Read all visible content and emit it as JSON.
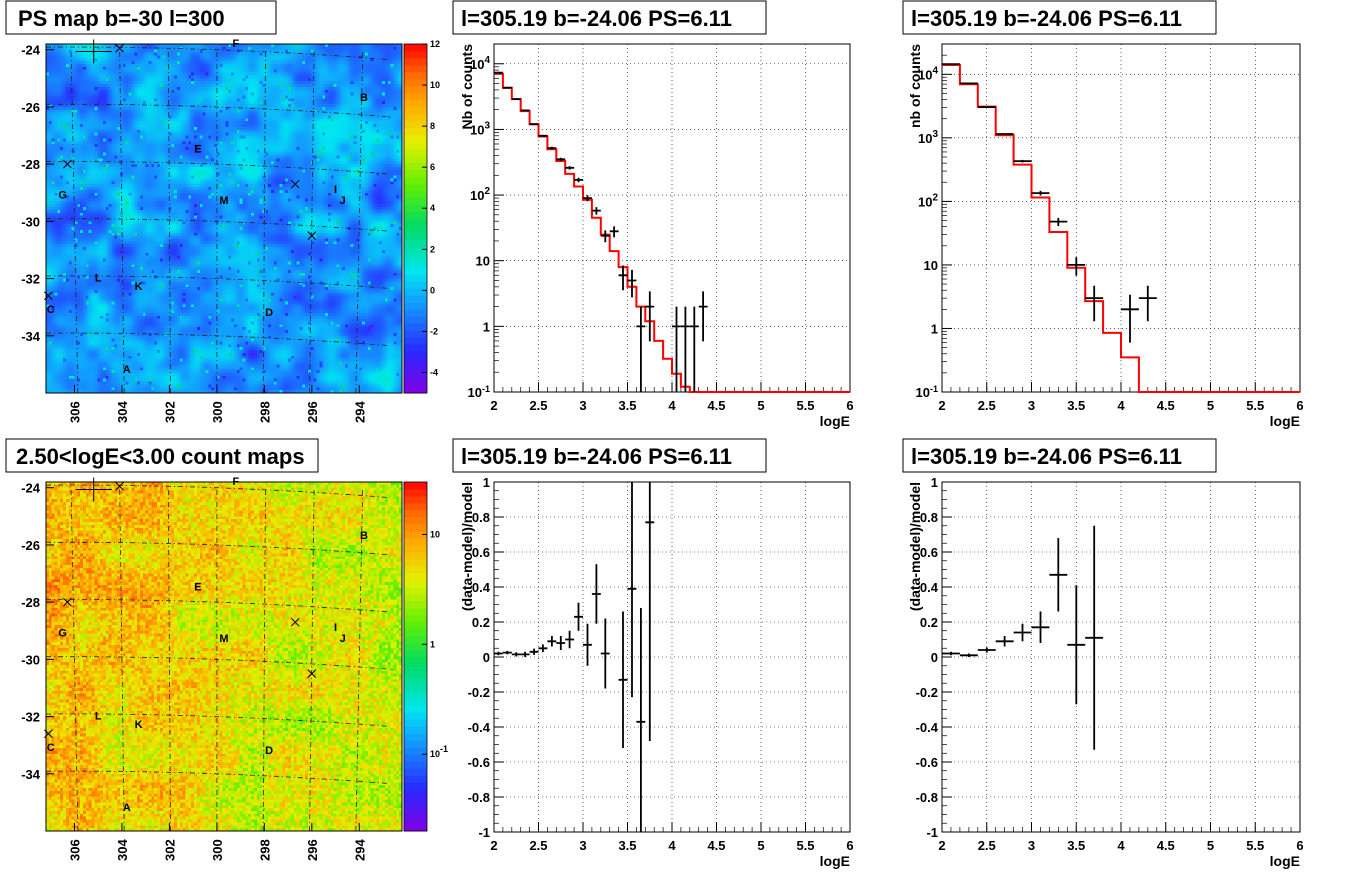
{
  "map_panels": [
    {
      "title": "PS map b=-30 l=300",
      "palette": "residual",
      "zmin": -5,
      "zmax": 12,
      "palette_ticks": [
        "12",
        "10",
        "8",
        "6",
        "4",
        "2",
        "0",
        "-2",
        "-4"
      ],
      "palette_tick_values": [
        12,
        10,
        8,
        6,
        4,
        2,
        0,
        -2,
        -4
      ]
    },
    {
      "title": "2.50<logE<3.00 count maps",
      "palette": "counts",
      "zmin": 0.02,
      "zmax": 30,
      "palette_ticks": [
        "10",
        "1",
        "10-1"
      ],
      "palette_tick_values": [
        10,
        1,
        0.1
      ]
    }
  ],
  "map_axes": {
    "y_ticks": [
      "-24",
      "-26",
      "-28",
      "-30",
      "-32",
      "-34"
    ],
    "y_tick_values": [
      -24,
      -26,
      -28,
      -30,
      -32,
      -34
    ],
    "y_range": [
      -36,
      -23.8
    ],
    "x_ticks": [
      "306",
      "304",
      "302",
      "300",
      "298",
      "296",
      "294"
    ],
    "x_tick_values": [
      306,
      304,
      302,
      300,
      298,
      296,
      294
    ],
    "x_range": [
      307.2,
      292.2
    ]
  },
  "sources": [
    {
      "label": "A",
      "l": 303.8,
      "b": -35.3
    },
    {
      "label": "B",
      "l": 293.8,
      "b": -25.8
    },
    {
      "label": "C",
      "l": 307.0,
      "b": -33.2
    },
    {
      "label": "D",
      "l": 297.8,
      "b": -33.3
    },
    {
      "label": "E",
      "l": 300.8,
      "b": -27.6
    },
    {
      "label": "F",
      "l": 299.2,
      "b": -23.9
    },
    {
      "label": "G",
      "l": 306.5,
      "b": -29.2
    },
    {
      "label": "I",
      "l": 295.0,
      "b": -29.0
    },
    {
      "label": "J",
      "l": 294.7,
      "b": -29.4
    },
    {
      "label": "K",
      "l": 303.3,
      "b": -32.4
    },
    {
      "label": "L",
      "l": 305.0,
      "b": -32.1
    },
    {
      "label": "M",
      "l": 299.7,
      "b": -29.4
    }
  ],
  "cross_markers": [
    {
      "l": 304.1,
      "b": -23.95
    },
    {
      "l": 306.3,
      "b": -28.0
    },
    {
      "l": 296.7,
      "b": -28.7
    },
    {
      "l": 296.0,
      "b": -30.5
    },
    {
      "l": 307.1,
      "b": -32.6
    }
  ],
  "chart_data": [
    {
      "type": "line",
      "title": "l=305.19 b=-24.06 PS=6.11",
      "xlabel": "logE",
      "ylabel": "Nb of counts",
      "xlim": [
        2,
        6
      ],
      "ylim": [
        0.1,
        20000
      ],
      "log_y": true,
      "grid": true,
      "x_ticks": [
        "2",
        "2.5",
        "3",
        "3.5",
        "4",
        "4.5",
        "5",
        "5.5",
        "6"
      ],
      "x_tick_values": [
        2,
        2.5,
        3,
        3.5,
        4,
        4.5,
        5,
        5.5,
        6
      ],
      "y_ticks": [
        "10-1",
        "1",
        "10",
        "10²",
        "10³",
        "10⁴"
      ],
      "y_tick_values": [
        0.1,
        1,
        10,
        100,
        1000,
        10000
      ],
      "model_step": [
        {
          "x0": 2.0,
          "x1": 2.1,
          "y": 7000
        },
        {
          "x0": 2.1,
          "x1": 2.2,
          "y": 4300
        },
        {
          "x0": 2.2,
          "x1": 2.3,
          "y": 2900
        },
        {
          "x0": 2.3,
          "x1": 2.4,
          "y": 1900
        },
        {
          "x0": 2.4,
          "x1": 2.5,
          "y": 1200
        },
        {
          "x0": 2.5,
          "x1": 2.6,
          "y": 780
        },
        {
          "x0": 2.6,
          "x1": 2.7,
          "y": 500
        },
        {
          "x0": 2.7,
          "x1": 2.8,
          "y": 330
        },
        {
          "x0": 2.8,
          "x1": 2.9,
          "y": 210
        },
        {
          "x0": 2.9,
          "x1": 3.0,
          "y": 135
        },
        {
          "x0": 3.0,
          "x1": 3.1,
          "y": 85
        },
        {
          "x0": 3.1,
          "x1": 3.2,
          "y": 45
        },
        {
          "x0": 3.2,
          "x1": 3.3,
          "y": 25
        },
        {
          "x0": 3.3,
          "x1": 3.4,
          "y": 14
        },
        {
          "x0": 3.4,
          "x1": 3.5,
          "y": 8
        },
        {
          "x0": 3.5,
          "x1": 3.6,
          "y": 4
        },
        {
          "x0": 3.6,
          "x1": 3.7,
          "y": 2
        },
        {
          "x0": 3.7,
          "x1": 3.8,
          "y": 1.2
        },
        {
          "x0": 3.8,
          "x1": 3.9,
          "y": 0.6
        },
        {
          "x0": 3.9,
          "x1": 4.0,
          "y": 0.32
        },
        {
          "x0": 4.0,
          "x1": 4.1,
          "y": 0.19
        },
        {
          "x0": 4.1,
          "x1": 4.2,
          "y": 0.12
        },
        {
          "x0": 4.2,
          "x1": 6.0,
          "y": 0.1
        }
      ],
      "data_points": [
        {
          "x": 2.05,
          "y": 7300,
          "ylo": 7150,
          "yhi": 7450,
          "xerr": 0.05
        },
        {
          "x": 2.15,
          "y": 4300,
          "ylo": 4200,
          "yhi": 4400,
          "xerr": 0.05
        },
        {
          "x": 2.25,
          "y": 2900,
          "ylo": 2840,
          "yhi": 2960,
          "xerr": 0.05
        },
        {
          "x": 2.35,
          "y": 1950,
          "ylo": 1900,
          "yhi": 2000,
          "xerr": 0.05
        },
        {
          "x": 2.45,
          "y": 1200,
          "ylo": 1165,
          "yhi": 1235,
          "xerr": 0.05
        },
        {
          "x": 2.55,
          "y": 800,
          "ylo": 772,
          "yhi": 828,
          "xerr": 0.05
        },
        {
          "x": 2.65,
          "y": 520,
          "ylo": 497,
          "yhi": 543,
          "xerr": 0.05
        },
        {
          "x": 2.75,
          "y": 350,
          "ylo": 331,
          "yhi": 369,
          "xerr": 0.05
        },
        {
          "x": 2.85,
          "y": 260,
          "ylo": 244,
          "yhi": 276,
          "xerr": 0.05
        },
        {
          "x": 2.95,
          "y": 170,
          "ylo": 157,
          "yhi": 183,
          "xerr": 0.05
        },
        {
          "x": 3.05,
          "y": 90,
          "ylo": 80.5,
          "yhi": 99.5,
          "xerr": 0.05
        },
        {
          "x": 3.15,
          "y": 58,
          "ylo": 50.4,
          "yhi": 65.6,
          "xerr": 0.05
        },
        {
          "x": 3.25,
          "y": 24,
          "ylo": 19.1,
          "yhi": 28.9,
          "xerr": 0.05
        },
        {
          "x": 3.35,
          "y": 28,
          "ylo": 22.7,
          "yhi": 33.3,
          "xerr": 0.05
        },
        {
          "x": 3.45,
          "y": 6,
          "ylo": 3.55,
          "yhi": 8.45,
          "xerr": 0.05
        },
        {
          "x": 3.55,
          "y": 5,
          "ylo": 2.76,
          "yhi": 7.24,
          "xerr": 0.05
        },
        {
          "x": 3.65,
          "y": 1,
          "ylo": 0.1,
          "yhi": 2,
          "xerr": 0.05
        },
        {
          "x": 3.75,
          "y": 2,
          "ylo": 0.59,
          "yhi": 3.41,
          "xerr": 0.05
        },
        {
          "x": 4.05,
          "y": 1,
          "ylo": 0.1,
          "yhi": 2,
          "xerr": 0.05
        },
        {
          "x": 4.15,
          "y": 1,
          "ylo": 0.1,
          "yhi": 2,
          "xerr": 0.05
        },
        {
          "x": 4.25,
          "y": 1,
          "ylo": 0.1,
          "yhi": 2,
          "xerr": 0.05
        },
        {
          "x": 4.35,
          "y": 2,
          "ylo": 0.59,
          "yhi": 3.41,
          "xerr": 0.05
        }
      ]
    },
    {
      "type": "line",
      "title": "l=305.19 b=-24.06 PS=6.11",
      "xlabel": "logE",
      "ylabel": "nb of counts",
      "xlim": [
        2,
        6
      ],
      "ylim": [
        0.1,
        30000
      ],
      "log_y": true,
      "grid": true,
      "x_ticks": [
        "2",
        "2.5",
        "3",
        "3.5",
        "4",
        "4.5",
        "5",
        "5.5",
        "6"
      ],
      "x_tick_values": [
        2,
        2.5,
        3,
        3.5,
        4,
        4.5,
        5,
        5.5,
        6
      ],
      "y_ticks": [
        "10-1",
        "1",
        "10",
        "10²",
        "10³",
        "10⁴"
      ],
      "y_tick_values": [
        0.1,
        1,
        10,
        100,
        1000,
        10000
      ],
      "model_step": [
        {
          "x0": 2.0,
          "x1": 2.2,
          "y": 14000
        },
        {
          "x0": 2.2,
          "x1": 2.4,
          "y": 7000
        },
        {
          "x0": 2.4,
          "x1": 2.6,
          "y": 3100
        },
        {
          "x0": 2.6,
          "x1": 2.8,
          "y": 1100
        },
        {
          "x0": 2.8,
          "x1": 3.0,
          "y": 380
        },
        {
          "x0": 3.0,
          "x1": 3.2,
          "y": 115
        },
        {
          "x0": 3.2,
          "x1": 3.4,
          "y": 33
        },
        {
          "x0": 3.4,
          "x1": 3.6,
          "y": 9
        },
        {
          "x0": 3.6,
          "x1": 3.8,
          "y": 2.7
        },
        {
          "x0": 3.8,
          "x1": 4.0,
          "y": 0.85
        },
        {
          "x0": 4.0,
          "x1": 4.2,
          "y": 0.35
        },
        {
          "x0": 4.2,
          "x1": 6.0,
          "y": 0.1
        }
      ],
      "data_points": [
        {
          "x": 2.1,
          "y": 14500,
          "ylo": 14280,
          "yhi": 14720,
          "xerr": 0.1
        },
        {
          "x": 2.3,
          "y": 7200,
          "ylo": 7080,
          "yhi": 7320,
          "xerr": 0.1
        },
        {
          "x": 2.5,
          "y": 3050,
          "ylo": 2990,
          "yhi": 3110,
          "xerr": 0.1
        },
        {
          "x": 2.7,
          "y": 1150,
          "ylo": 1115,
          "yhi": 1185,
          "xerr": 0.1
        },
        {
          "x": 2.9,
          "y": 430,
          "ylo": 410,
          "yhi": 450,
          "xerr": 0.1
        },
        {
          "x": 3.1,
          "y": 135,
          "ylo": 124,
          "yhi": 146,
          "xerr": 0.1
        },
        {
          "x": 3.3,
          "y": 48,
          "ylo": 41,
          "yhi": 55,
          "xerr": 0.1
        },
        {
          "x": 3.5,
          "y": 10,
          "ylo": 6.8,
          "yhi": 13.2,
          "xerr": 0.1
        },
        {
          "x": 3.7,
          "y": 3,
          "ylo": 1.3,
          "yhi": 4.7,
          "xerr": 0.1
        },
        {
          "x": 4.1,
          "y": 2,
          "ylo": 0.6,
          "yhi": 3.4,
          "xerr": 0.1
        },
        {
          "x": 4.3,
          "y": 3,
          "ylo": 1.3,
          "yhi": 4.7,
          "xerr": 0.1
        }
      ]
    },
    {
      "type": "scatter",
      "title": "l=305.19 b=-24.06 PS=6.11",
      "xlabel": "logE",
      "ylabel": "(data-model)/model",
      "xlim": [
        2,
        6
      ],
      "ylim": [
        -1,
        1
      ],
      "grid": true,
      "x_ticks": [
        "2",
        "2.5",
        "3",
        "3.5",
        "4",
        "4.5",
        "5",
        "5.5",
        "6"
      ],
      "x_tick_values": [
        2,
        2.5,
        3,
        3.5,
        4,
        4.5,
        5,
        5.5,
        6
      ],
      "y_ticks": [
        "-1",
        "-0.8",
        "-0.6",
        "-0.4",
        "-0.2",
        "0",
        "0.2",
        "0.4",
        "0.6",
        "0.8",
        "1"
      ],
      "y_tick_values": [
        -1,
        -0.8,
        -0.6,
        -0.4,
        -0.2,
        0,
        0.2,
        0.4,
        0.6,
        0.8,
        1
      ],
      "data_points": [
        {
          "x": 2.05,
          "y": 0.02,
          "yerr": 0.01,
          "xerr": 0.05
        },
        {
          "x": 2.15,
          "y": 0.025,
          "yerr": 0.01,
          "xerr": 0.05
        },
        {
          "x": 2.25,
          "y": 0.015,
          "yerr": 0.012,
          "xerr": 0.05
        },
        {
          "x": 2.35,
          "y": 0.015,
          "yerr": 0.015,
          "xerr": 0.05
        },
        {
          "x": 2.45,
          "y": 0.03,
          "yerr": 0.018,
          "xerr": 0.05
        },
        {
          "x": 2.55,
          "y": 0.05,
          "yerr": 0.022,
          "xerr": 0.05
        },
        {
          "x": 2.65,
          "y": 0.09,
          "yerr": 0.03,
          "xerr": 0.05
        },
        {
          "x": 2.75,
          "y": 0.08,
          "yerr": 0.04,
          "xerr": 0.05
        },
        {
          "x": 2.85,
          "y": 0.1,
          "yerr": 0.05,
          "xerr": 0.05
        },
        {
          "x": 2.95,
          "y": 0.23,
          "yerr": 0.08,
          "xerr": 0.05
        },
        {
          "x": 3.05,
          "y": 0.07,
          "yerr": 0.12,
          "xerr": 0.05
        },
        {
          "x": 3.15,
          "y": 0.36,
          "yerr": 0.17,
          "xerr": 0.05
        },
        {
          "x": 3.25,
          "y": 0.02,
          "yerr": 0.2,
          "xerr": 0.05
        },
        {
          "x": 3.45,
          "y": -0.13,
          "yerr": 0.39,
          "xerr": 0.05
        },
        {
          "x": 3.55,
          "y": 0.39,
          "yerr": 0.62,
          "xerr": 0.05
        },
        {
          "x": 3.65,
          "y": -0.37,
          "yerr": 0.65,
          "xerr": 0.05
        },
        {
          "x": 3.75,
          "y": 0.77,
          "yerr": 1.25,
          "xerr": 0.05
        }
      ]
    },
    {
      "type": "scatter",
      "title": "l=305.19 b=-24.06 PS=6.11",
      "xlabel": "logE",
      "ylabel": "(data-model)/model",
      "xlim": [
        2,
        6
      ],
      "ylim": [
        -1,
        1
      ],
      "grid": true,
      "x_ticks": [
        "2",
        "2.5",
        "3",
        "3.5",
        "4",
        "4.5",
        "5",
        "5.5",
        "6"
      ],
      "x_tick_values": [
        2,
        2.5,
        3,
        3.5,
        4,
        4.5,
        5,
        5.5,
        6
      ],
      "y_ticks": [
        "-1",
        "-0.8",
        "-0.6",
        "-0.4",
        "-0.2",
        "0",
        "0.2",
        "0.4",
        "0.6",
        "0.8",
        "1"
      ],
      "y_tick_values": [
        -1,
        -0.8,
        -0.6,
        -0.4,
        -0.2,
        0,
        0.2,
        0.4,
        0.6,
        0.8,
        1
      ],
      "data_points": [
        {
          "x": 2.1,
          "y": 0.02,
          "yerr": 0.01,
          "xerr": 0.1
        },
        {
          "x": 2.3,
          "y": 0.01,
          "yerr": 0.01,
          "xerr": 0.1
        },
        {
          "x": 2.5,
          "y": 0.04,
          "yerr": 0.015,
          "xerr": 0.1
        },
        {
          "x": 2.7,
          "y": 0.09,
          "yerr": 0.03,
          "xerr": 0.1
        },
        {
          "x": 2.9,
          "y": 0.14,
          "yerr": 0.05,
          "xerr": 0.1
        },
        {
          "x": 3.1,
          "y": 0.17,
          "yerr": 0.09,
          "xerr": 0.1
        },
        {
          "x": 3.3,
          "y": 0.47,
          "yerr": 0.21,
          "xerr": 0.1
        },
        {
          "x": 3.5,
          "y": 0.07,
          "yerr": 0.34,
          "xerr": 0.1
        },
        {
          "x": 3.7,
          "y": 0.11,
          "yerr": 0.64,
          "xerr": 0.1
        }
      ]
    }
  ]
}
